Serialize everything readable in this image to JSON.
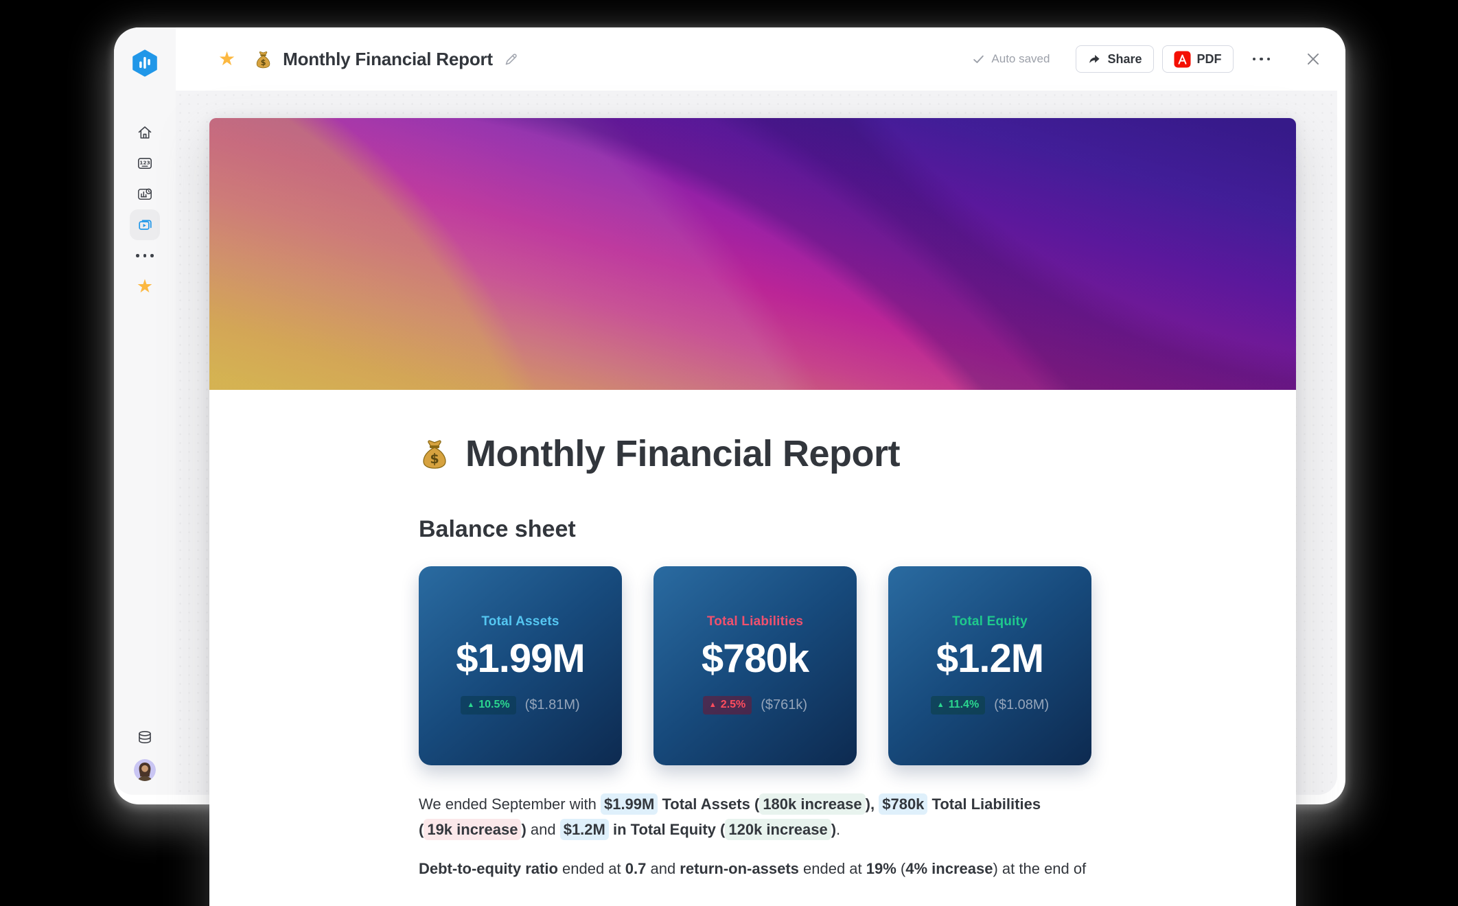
{
  "header": {
    "title": "Monthly Financial Report",
    "doc_icon": "money-bag",
    "favorite_icon": "star",
    "autosave_label": "Auto saved",
    "share_label": "Share",
    "pdf_label": "PDF"
  },
  "sidebar": {
    "logo_icon": "hexagon-bar-chart-logo",
    "items": [
      "home",
      "numbers-board",
      "chart-report",
      "video-gallery",
      "more",
      "favorites"
    ],
    "active_item": "video-gallery",
    "bottom_items": [
      "database",
      "user-avatar"
    ]
  },
  "colors": {
    "brand_blue": "#2197e8",
    "star_gold": "#fcb840",
    "pdf_red": "#f40f02",
    "card_gradient_start": "#2a6ba1",
    "card_gradient_end": "#0d2a50"
  },
  "document": {
    "title": "Monthly Financial Report",
    "title_icon": "money-bag",
    "section_title": "Balance sheet",
    "highlight_colors": {
      "blue": "#dff0fb",
      "green": "#e8f3ee",
      "red": "#fbe8ea"
    },
    "cards": [
      {
        "label": "Total Assets",
        "value": "$1.99M",
        "delta_icon": "▲",
        "delta": "10.5%",
        "previous": "($1.81M)",
        "label_color": "#55c7f2",
        "delta_color": "#2bd68f",
        "badge_bg": "rgba(9,56,76,0.55)"
      },
      {
        "label": "Total Liabilities",
        "value": "$780k",
        "delta_icon": "▲",
        "delta": "2.5%",
        "previous": "($761k)",
        "label_color": "#f0516e",
        "delta_color": "#ff4d5e",
        "badge_bg": "rgba(114,20,47,0.55)"
      },
      {
        "label": "Total Equity",
        "value": "$1.2M",
        "delta_icon": "▲",
        "delta": "11.4%",
        "previous": "($1.08M)",
        "label_color": "#1fc98c",
        "delta_color": "#2bd68f",
        "badge_bg": "rgba(9,62,60,0.5)"
      }
    ],
    "paragraphs": [
      [
        {
          "t": "We ended September with "
        },
        {
          "t": "$1.99M",
          "b": true,
          "hl": "blue"
        },
        {
          "t": " ",
          "b": true
        },
        {
          "t": "Total Assets",
          "b": true
        },
        {
          "t": " (",
          "b": true
        },
        {
          "t": "180k increase",
          "b": true,
          "hl": "green"
        },
        {
          "t": "),",
          "b": true
        },
        {
          "t": " "
        },
        {
          "t": "$780k",
          "b": true,
          "hl": "blue"
        },
        {
          "t": " ",
          "b": true
        },
        {
          "t": "Total Liabilities",
          "b": true
        },
        {
          "br": true
        },
        {
          "t": "(",
          "b": true
        },
        {
          "t": "19k increase",
          "b": true,
          "hl": "red"
        },
        {
          "t": ")",
          "b": true
        },
        {
          "t": " and "
        },
        {
          "t": "$1.2M",
          "b": true,
          "hl": "blue"
        },
        {
          "t": " "
        },
        {
          "t": "in Total Equity",
          "b": true
        },
        {
          "t": " (",
          "b": true
        },
        {
          "t": "120k increase",
          "b": true,
          "hl": "green"
        },
        {
          "t": ")",
          "b": true
        },
        {
          "t": "."
        }
      ],
      [
        {
          "t": "Debt-to-equity ratio",
          "b": true
        },
        {
          "t": " ended at "
        },
        {
          "t": "0.7",
          "b": true
        },
        {
          "t": " and "
        },
        {
          "t": "return-on-assets",
          "b": true
        },
        {
          "t": " ended at "
        },
        {
          "t": "19%",
          "b": true
        },
        {
          "t": " ("
        },
        {
          "t": "4% increase",
          "b": true
        },
        {
          "t": ") at the end of"
        }
      ]
    ]
  }
}
